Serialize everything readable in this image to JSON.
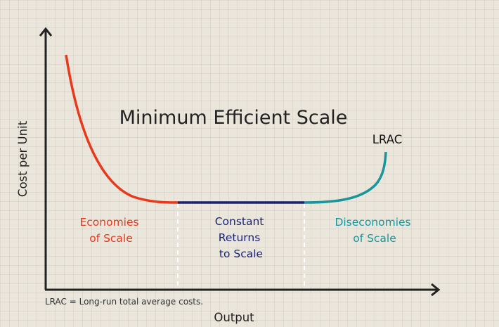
{
  "title": "Minimum Efficient Scale",
  "curve_label": "LRAC",
  "y_axis_label": "Cost per Unit",
  "x_axis_label": "Output",
  "footnote": "LRAC = Long-run total average costs.",
  "regions": {
    "economies": {
      "lines": [
        "Economies",
        "of Scale"
      ],
      "color": "#e8391d"
    },
    "constant": {
      "lines": [
        "Constant",
        "Returns",
        "to Scale"
      ],
      "color": "#1b2270"
    },
    "diseconomies": {
      "lines": [
        "Diseconomies",
        "of Scale"
      ],
      "color": "#1a959b"
    }
  },
  "colors": {
    "axis": "#222222",
    "divider": "#ffffff"
  }
}
